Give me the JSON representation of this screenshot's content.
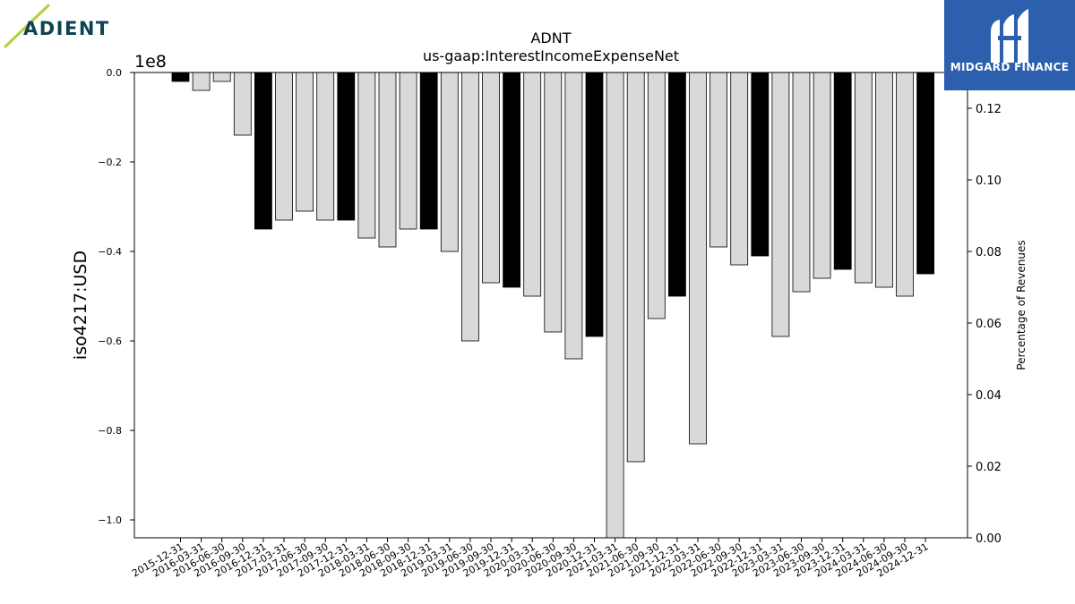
{
  "logos": {
    "left": "ADIENT",
    "right": "MIDGARD FINANCE"
  },
  "chart_data": {
    "type": "bar",
    "title": "ADNT",
    "subtitle": "us-gaap:InterestIncomeExpenseNet",
    "ylabel": "iso4217:USD",
    "y_offset_label": "1e8",
    "y2label": "Percentage of Revenues",
    "ylim": [
      -1.04,
      0.0
    ],
    "y_ticks": [
      "0.0",
      "−0.2",
      "−0.4",
      "−0.6",
      "−0.8",
      "−1.0"
    ],
    "y2lim": [
      0.0,
      0.13
    ],
    "y2_ticks": [
      "0.00",
      "0.02",
      "0.04",
      "0.06",
      "0.08",
      "0.10",
      "0.12"
    ],
    "categories": [
      "2015-12-31",
      "2016-03-31",
      "2016-06-30",
      "2016-09-30",
      "2016-12-31",
      "2017-03-31",
      "2017-06-30",
      "2017-09-30",
      "2017-12-31",
      "2018-03-31",
      "2018-06-30",
      "2018-09-30",
      "2018-12-31",
      "2019-03-31",
      "2019-06-30",
      "2019-09-30",
      "2019-12-31",
      "2020-03-31",
      "2020-06-30",
      "2020-09-30",
      "2020-12-31",
      "2021-03-31",
      "2021-06-30",
      "2021-09-30",
      "2021-12-31",
      "2022-03-31",
      "2022-06-30",
      "2022-09-30",
      "2022-12-31",
      "2023-03-31",
      "2023-06-30",
      "2023-09-30",
      "2023-12-31",
      "2024-03-31",
      "2024-06-30",
      "2024-09-30",
      "2024-12-31"
    ],
    "values": [
      -0.02,
      -0.04,
      -0.02,
      -0.14,
      -0.35,
      -0.33,
      -0.31,
      -0.33,
      -0.33,
      -0.37,
      -0.39,
      -0.35,
      -0.35,
      -0.4,
      -0.6,
      -0.47,
      -0.48,
      -0.5,
      -0.58,
      -0.64,
      -0.59,
      -1.04,
      -0.87,
      -0.55,
      -0.5,
      -0.83,
      -0.39,
      -0.43,
      -0.41,
      -0.59,
      -0.49,
      -0.46,
      -0.44,
      -0.47,
      -0.48,
      -0.5,
      -0.45
    ],
    "fiscal_year_end": [
      true,
      false,
      false,
      false,
      true,
      false,
      false,
      false,
      true,
      false,
      false,
      false,
      true,
      false,
      false,
      false,
      true,
      false,
      false,
      false,
      true,
      false,
      false,
      false,
      true,
      false,
      false,
      false,
      true,
      false,
      false,
      false,
      true,
      false,
      false,
      false,
      true
    ],
    "colors": {
      "fiscal_year_end": "#000000",
      "quarter": "#d9d9d9"
    },
    "grid": false
  }
}
